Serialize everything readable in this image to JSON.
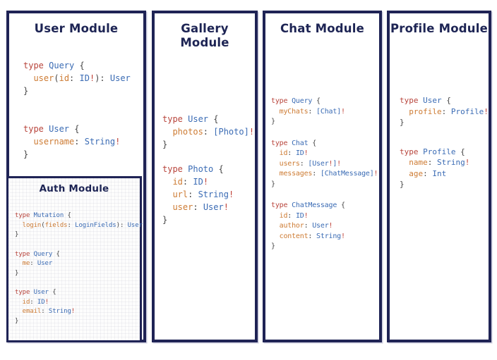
{
  "colors": {
    "border": "#1f2355",
    "title": "#1d2454",
    "background": "#ffffff",
    "syntax": {
      "k": "#b8453c",
      "t": "#3a6bb4",
      "f": "#cd7b33",
      "p": "#464646",
      "e": "#c04339"
    }
  },
  "syntax_legend": {
    "k": "keyword",
    "t": "type-name",
    "f": "field-name",
    "p": "punctuation",
    "e": "non-null-bang"
  },
  "modules": {
    "user": {
      "title": "User Module",
      "code": [
        [
          [
            [
              "type ",
              "k"
            ],
            [
              "Query ",
              "t"
            ],
            [
              "{",
              "p"
            ]
          ],
          [
            [
              "  user",
              "f"
            ],
            [
              "(",
              "p"
            ],
            [
              "id",
              "f"
            ],
            [
              ": ",
              "p"
            ],
            [
              "ID",
              "t"
            ],
            [
              "!",
              "e"
            ],
            [
              "): ",
              "p"
            ],
            [
              "User",
              "t"
            ]
          ],
          [
            [
              "}",
              "p"
            ]
          ]
        ],
        [
          [
            [
              "type ",
              "k"
            ],
            [
              "User ",
              "t"
            ],
            [
              "{",
              "p"
            ]
          ],
          [
            [
              "  username",
              "f"
            ],
            [
              ": ",
              "p"
            ],
            [
              "String",
              "t"
            ],
            [
              "!",
              "e"
            ]
          ],
          [
            [
              "}",
              "p"
            ]
          ]
        ]
      ]
    },
    "auth": {
      "title": "Auth Module",
      "code": [
        [
          [
            [
              "type ",
              "k"
            ],
            [
              "Mutation ",
              "t"
            ],
            [
              "{",
              "p"
            ]
          ],
          [
            [
              "  login",
              "f"
            ],
            [
              "(",
              "p"
            ],
            [
              "fields",
              "f"
            ],
            [
              ": ",
              "p"
            ],
            [
              "LoginFields",
              "t"
            ],
            [
              "): ",
              "p"
            ],
            [
              "User",
              "t"
            ]
          ],
          [
            [
              "}",
              "p"
            ]
          ]
        ],
        [
          [
            [
              "type ",
              "k"
            ],
            [
              "Query ",
              "t"
            ],
            [
              "{",
              "p"
            ]
          ],
          [
            [
              "  me",
              "f"
            ],
            [
              ": ",
              "p"
            ],
            [
              "User",
              "t"
            ]
          ],
          [
            [
              "}",
              "p"
            ]
          ]
        ],
        [
          [
            [
              "type ",
              "k"
            ],
            [
              "User ",
              "t"
            ],
            [
              "{",
              "p"
            ]
          ],
          [
            [
              "  id",
              "f"
            ],
            [
              ": ",
              "p"
            ],
            [
              "ID",
              "t"
            ],
            [
              "!",
              "e"
            ]
          ],
          [
            [
              "  email",
              "f"
            ],
            [
              ": ",
              "p"
            ],
            [
              "String",
              "t"
            ],
            [
              "!",
              "e"
            ]
          ],
          [
            [
              "}",
              "p"
            ]
          ]
        ]
      ]
    },
    "gallery": {
      "title": "Gallery Module",
      "code": [
        [
          [
            [
              "type ",
              "k"
            ],
            [
              "User ",
              "t"
            ],
            [
              "{",
              "p"
            ]
          ],
          [
            [
              "  photos",
              "f"
            ],
            [
              ": ",
              "p"
            ],
            [
              "[Photo]",
              "t"
            ],
            [
              "!",
              "e"
            ]
          ],
          [
            [
              "}",
              "p"
            ]
          ]
        ],
        [
          [
            [
              "type ",
              "k"
            ],
            [
              "Photo ",
              "t"
            ],
            [
              "{",
              "p"
            ]
          ],
          [
            [
              "  id",
              "f"
            ],
            [
              ": ",
              "p"
            ],
            [
              "ID",
              "t"
            ],
            [
              "!",
              "e"
            ]
          ],
          [
            [
              "  url",
              "f"
            ],
            [
              ": ",
              "p"
            ],
            [
              "String",
              "t"
            ],
            [
              "!",
              "e"
            ]
          ],
          [
            [
              "  user",
              "f"
            ],
            [
              ": ",
              "p"
            ],
            [
              "User",
              "t"
            ],
            [
              "!",
              "e"
            ]
          ],
          [
            [
              "}",
              "p"
            ]
          ]
        ]
      ]
    },
    "chat": {
      "title": "Chat Module",
      "code": [
        [
          [
            [
              "type ",
              "k"
            ],
            [
              "Query ",
              "t"
            ],
            [
              "{",
              "p"
            ]
          ],
          [
            [
              "  myChats",
              "f"
            ],
            [
              ": ",
              "p"
            ],
            [
              "[Chat]",
              "t"
            ],
            [
              "!",
              "e"
            ]
          ],
          [
            [
              "}",
              "p"
            ]
          ]
        ],
        [
          [
            [
              "type ",
              "k"
            ],
            [
              "Chat ",
              "t"
            ],
            [
              "{",
              "p"
            ]
          ],
          [
            [
              "  id",
              "f"
            ],
            [
              ": ",
              "p"
            ],
            [
              "ID",
              "t"
            ],
            [
              "!",
              "e"
            ]
          ],
          [
            [
              "  users",
              "f"
            ],
            [
              ": ",
              "p"
            ],
            [
              "[User",
              "t"
            ],
            [
              "!",
              "e"
            ],
            [
              "]",
              "t"
            ],
            [
              "!",
              "e"
            ]
          ],
          [
            [
              "  messages",
              "f"
            ],
            [
              ": ",
              "p"
            ],
            [
              "[ChatMessage]",
              "t"
            ],
            [
              "!",
              "e"
            ]
          ],
          [
            [
              "}",
              "p"
            ]
          ]
        ],
        [
          [
            [
              "type ",
              "k"
            ],
            [
              "ChatMessage ",
              "t"
            ],
            [
              "{",
              "p"
            ]
          ],
          [
            [
              "  id",
              "f"
            ],
            [
              ": ",
              "p"
            ],
            [
              "ID",
              "t"
            ],
            [
              "!",
              "e"
            ]
          ],
          [
            [
              "  author",
              "f"
            ],
            [
              ": ",
              "p"
            ],
            [
              "User",
              "t"
            ],
            [
              "!",
              "e"
            ]
          ],
          [
            [
              "  content",
              "f"
            ],
            [
              ": ",
              "p"
            ],
            [
              "String",
              "t"
            ],
            [
              "!",
              "e"
            ]
          ],
          [
            [
              "}",
              "p"
            ]
          ]
        ]
      ]
    },
    "profile": {
      "title": "Profile Module",
      "code": [
        [
          [
            [
              "type ",
              "k"
            ],
            [
              "User ",
              "t"
            ],
            [
              "{",
              "p"
            ]
          ],
          [
            [
              "  profile",
              "f"
            ],
            [
              ": ",
              "p"
            ],
            [
              "Profile",
              "t"
            ],
            [
              "!",
              "e"
            ]
          ],
          [
            [
              "}",
              "p"
            ]
          ]
        ],
        [
          [
            [
              "type ",
              "k"
            ],
            [
              "Profile ",
              "t"
            ],
            [
              "{",
              "p"
            ]
          ],
          [
            [
              "  name",
              "f"
            ],
            [
              ": ",
              "p"
            ],
            [
              "String",
              "t"
            ],
            [
              "!",
              "e"
            ]
          ],
          [
            [
              "  age",
              "f"
            ],
            [
              ": ",
              "p"
            ],
            [
              "Int",
              "t"
            ]
          ],
          [
            [
              "}",
              "p"
            ]
          ]
        ]
      ]
    }
  }
}
